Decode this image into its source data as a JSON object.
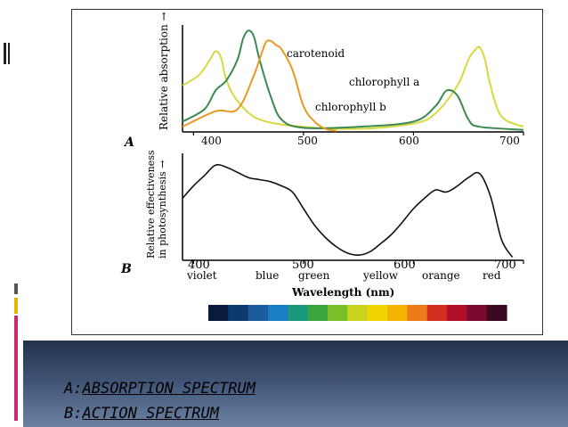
{
  "panel_a": {
    "letter": "A",
    "ylabel": "Relative absorption →",
    "x_ticks": [
      "400",
      "500",
      "600",
      "700"
    ]
  },
  "panel_b": {
    "letter": "B",
    "ylabel_line1": "Relative effectiveness",
    "ylabel_line2": "in photosynthesis →",
    "x_ticks": [
      "400",
      "500",
      "600",
      "700"
    ],
    "color_words": [
      "violet",
      "blue",
      "green",
      "yellow",
      "orange",
      "red"
    ],
    "xlabel": "Wavelength (nm)"
  },
  "spectrum_colors": [
    "#0a1a3c",
    "#0d3a6e",
    "#1c5c9e",
    "#1a7ec4",
    "#1a9a7a",
    "#3aa640",
    "#7abf2a",
    "#c8d41e",
    "#f2d400",
    "#f5b400",
    "#ef7a1a",
    "#d43020",
    "#b0102a",
    "#7a0a30",
    "#3a0a20"
  ],
  "footer": {
    "line1_prefix": "A:",
    "line1_text": "ABSORPTION SPECTRUM",
    "line2_prefix": "B:",
    "line2_text": "ACTION SPECTRUM"
  },
  "chart_data": [
    {
      "type": "line",
      "ylabel": "Relative absorption →",
      "xlim": [
        390,
        700
      ],
      "series": [
        {
          "name": "chlorophyll a",
          "color": "#d8d840",
          "x": [
            390,
            405,
            415,
            420,
            425,
            430,
            440,
            460,
            500,
            550,
            600,
            620,
            640,
            650,
            655,
            660,
            665,
            670,
            680,
            700
          ],
          "y": [
            0.45,
            0.55,
            0.7,
            0.78,
            0.72,
            0.5,
            0.3,
            0.12,
            0.05,
            0.03,
            0.08,
            0.18,
            0.45,
            0.7,
            0.78,
            0.82,
            0.7,
            0.45,
            0.15,
            0.05
          ]
        },
        {
          "name": "chlorophyll b",
          "color": "#3a8a50",
          "x": [
            390,
            410,
            420,
            430,
            440,
            445,
            450,
            455,
            460,
            470,
            480,
            500,
            550,
            600,
            620,
            630,
            640,
            650,
            660,
            700
          ],
          "y": [
            0.1,
            0.22,
            0.4,
            0.5,
            0.7,
            0.9,
            0.98,
            0.92,
            0.7,
            0.35,
            0.12,
            0.04,
            0.05,
            0.1,
            0.25,
            0.4,
            0.35,
            0.12,
            0.05,
            0.02
          ]
        },
        {
          "name": "carotenoid",
          "color": "#e89a20",
          "x": [
            390,
            420,
            440,
            455,
            465,
            470,
            475,
            480,
            490,
            500,
            510,
            520,
            530
          ],
          "y": [
            0.05,
            0.2,
            0.22,
            0.55,
            0.85,
            0.88,
            0.84,
            0.8,
            0.6,
            0.25,
            0.1,
            0.03,
            0.01
          ]
        }
      ]
    },
    {
      "type": "line",
      "ylabel": "Relative effectiveness in photosynthesis →",
      "xlabel": "Wavelength (nm)",
      "xlim": [
        390,
        700
      ],
      "series": [
        {
          "x": [
            390,
            400,
            410,
            420,
            430,
            440,
            450,
            460,
            470,
            480,
            490,
            500,
            510,
            520,
            530,
            540,
            550,
            560,
            570,
            580,
            590,
            600,
            610,
            620,
            630,
            640,
            650,
            660,
            670,
            680,
            690
          ],
          "y": [
            0.6,
            0.72,
            0.82,
            0.92,
            0.9,
            0.85,
            0.8,
            0.78,
            0.76,
            0.72,
            0.66,
            0.5,
            0.34,
            0.22,
            0.13,
            0.07,
            0.05,
            0.08,
            0.16,
            0.25,
            0.37,
            0.5,
            0.6,
            0.68,
            0.66,
            0.72,
            0.8,
            0.84,
            0.62,
            0.2,
            0.03
          ]
        }
      ]
    }
  ]
}
